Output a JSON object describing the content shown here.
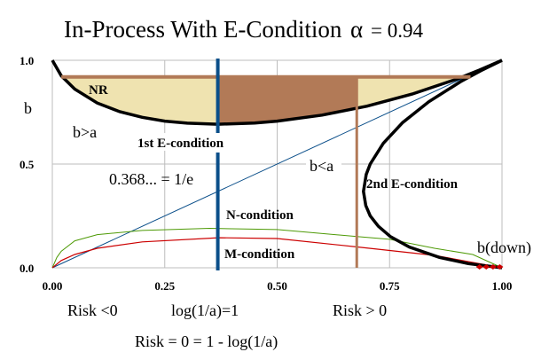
{
  "chart_data": {
    "type": "line",
    "title": "In-Process With E-Condition",
    "title_alpha_symbol": "α",
    "title_alpha_value": "= 0.94",
    "ylabel": "b",
    "xlim": [
      0,
      1
    ],
    "ylim": [
      0,
      1
    ],
    "grid": true,
    "x_ticks": [
      "0.00",
      "0.25",
      "0.50",
      "0.75",
      "1.00"
    ],
    "x_tick_values": [
      0,
      0.25,
      0.5,
      0.75,
      1
    ],
    "y_ticks": [
      "0.0",
      "0.5",
      "1.0"
    ],
    "y_tick_values": [
      0,
      0.5,
      1
    ],
    "colors": {
      "upper": "#000000",
      "lower": "#000000",
      "diagonal": "#0b4f8a",
      "n_condition": "#4e9a06",
      "m_condition": "#cc0000",
      "e_line": "#0b4f8a",
      "brown": "#b27a57",
      "beige": "#efe3b0"
    },
    "upper_curve": {
      "x": [
        0,
        0.02,
        0.05,
        0.1,
        0.15,
        0.2,
        0.25,
        0.3,
        0.368,
        0.45,
        0.5,
        0.6,
        0.7,
        0.8,
        0.9,
        0.95,
        1
      ],
      "y": [
        1,
        0.925,
        0.861,
        0.794,
        0.752,
        0.725,
        0.707,
        0.697,
        0.692,
        0.698,
        0.707,
        0.736,
        0.779,
        0.837,
        0.91,
        0.953,
        1
      ]
    },
    "n_condition": {
      "x": [
        0,
        0.01,
        0.02,
        0.05,
        0.1,
        0.2,
        0.35,
        0.5,
        0.68,
        0.75,
        0.85,
        0.935,
        1
      ],
      "y": [
        0,
        0.05,
        0.08,
        0.13,
        0.16,
        0.18,
        0.19,
        0.184,
        0.15,
        0.137,
        0.094,
        0.064,
        0
      ]
    },
    "m_condition": {
      "x": [
        0,
        0.02,
        0.05,
        0.1,
        0.2,
        0.37,
        0.5,
        0.68,
        0.85,
        0.95,
        1
      ],
      "y": [
        0,
        0.035,
        0.064,
        0.094,
        0.125,
        0.145,
        0.141,
        0.1,
        0.06,
        0.02,
        0
      ]
    },
    "e_condition_x": 0.368,
    "second_e_x": 0.677,
    "nr_level": 0.92,
    "nr_x_range": [
      0.02,
      0.93
    ],
    "b_down_markers_x": [
      0.95,
      0.965,
      0.98,
      0.995
    ],
    "annotations": {
      "nr": "NR",
      "b_gt_a": "b>a",
      "first_e": "1st E-condition",
      "inv_e": "0.368... = 1/e",
      "b_lt_a": "b<a",
      "second_e": "2nd E-condition",
      "n_cond": "N-condition",
      "m_cond": "M-condition",
      "b_down": "b(down)",
      "risk_neg": "Risk <0",
      "log_one": "log(1/a)=1",
      "risk_pos": "Risk > 0",
      "risk_zero": "Risk = 0 = 1 - log(1/a)"
    }
  }
}
